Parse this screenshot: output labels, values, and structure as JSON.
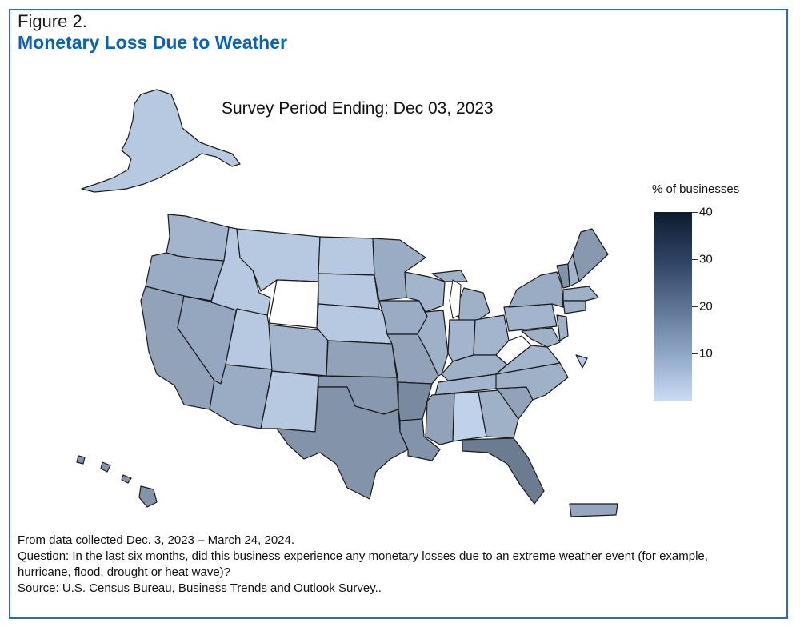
{
  "figure": {
    "label": "Figure 2.",
    "title": "Monetary Loss Due to Weather",
    "subtitle": "Survey Period Ending: Dec 03, 2023"
  },
  "legend": {
    "title": "% of businesses",
    "ticks": [
      "40",
      "30",
      "20",
      "10"
    ],
    "tick_values": [
      40,
      30,
      20,
      10
    ],
    "range": [
      0,
      40
    ],
    "color_low": "#c9dcf4",
    "color_high": "#0d1b2e"
  },
  "notes": {
    "line1": "From data collected Dec. 3, 2023 – March 24, 2024.",
    "line2": "Question: In the last six months, did this business experience any monetary losses due to an extreme weather event (for example, hurricane, flood, drought or heat wave)?",
    "line3": "Source: U.S. Census Bureau, Business Trends and Outlook Survey.."
  },
  "chart_data": {
    "type": "choropleth",
    "title": "Monetary Loss Due to Weather",
    "legend_title": "% of businesses",
    "scale_range": [
      0,
      40
    ],
    "states": [
      {
        "state": "AK",
        "value": 4
      },
      {
        "state": "WA",
        "value": 8
      },
      {
        "state": "OR",
        "value": 10
      },
      {
        "state": "CA",
        "value": 12
      },
      {
        "state": "NV",
        "value": 11
      },
      {
        "state": "ID",
        "value": 4
      },
      {
        "state": "MT",
        "value": 4
      },
      {
        "state": "WY",
        "value": 1
      },
      {
        "state": "UT",
        "value": 4
      },
      {
        "state": "AZ",
        "value": 10
      },
      {
        "state": "CO",
        "value": 8
      },
      {
        "state": "NM",
        "value": 4
      },
      {
        "state": "ND",
        "value": 4
      },
      {
        "state": "SD",
        "value": 4
      },
      {
        "state": "NE",
        "value": 4
      },
      {
        "state": "KS",
        "value": 12
      },
      {
        "state": "OK",
        "value": 14
      },
      {
        "state": "TX",
        "value": 15
      },
      {
        "state": "MN",
        "value": 10
      },
      {
        "state": "IA",
        "value": 10
      },
      {
        "state": "MO",
        "value": 12
      },
      {
        "state": "AR",
        "value": 17
      },
      {
        "state": "LA",
        "value": 15
      },
      {
        "state": "WI",
        "value": 8
      },
      {
        "state": "IL",
        "value": 9
      },
      {
        "state": "MI",
        "value": 9
      },
      {
        "state": "IN",
        "value": 8
      },
      {
        "state": "OH",
        "value": 8
      },
      {
        "state": "KY",
        "value": 9
      },
      {
        "state": "TN",
        "value": 8
      },
      {
        "state": "MS",
        "value": 12
      },
      {
        "state": "AL",
        "value": 2
      },
      {
        "state": "GA",
        "value": 9
      },
      {
        "state": "FL",
        "value": 20
      },
      {
        "state": "SC",
        "value": 12
      },
      {
        "state": "NC",
        "value": 9
      },
      {
        "state": "VA",
        "value": 8
      },
      {
        "state": "WV",
        "value": 1
      },
      {
        "state": "PA",
        "value": 8
      },
      {
        "state": "NY",
        "value": 10
      },
      {
        "state": "VT",
        "value": 15
      },
      {
        "state": "NH",
        "value": 8
      },
      {
        "state": "ME",
        "value": 14
      },
      {
        "state": "MA",
        "value": 9
      },
      {
        "state": "CT",
        "value": 9
      },
      {
        "state": "NJ",
        "value": 9
      },
      {
        "state": "MD",
        "value": 9
      },
      {
        "state": "DE",
        "value": 4
      },
      {
        "state": "HI",
        "value": 15
      },
      {
        "state": "PR",
        "value": 11
      }
    ]
  }
}
